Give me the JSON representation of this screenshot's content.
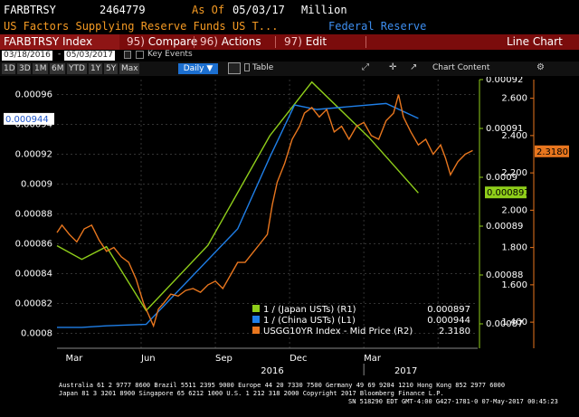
{
  "header": {
    "ticker": "FARBTRSY",
    "value": "2464779",
    "as_of_label": "As Of",
    "as_of_date": "05/03/17",
    "unit": "Million",
    "description": "US Factors Supplying Reserve Funds US T...",
    "source": "Federal Reserve"
  },
  "toolbar": {
    "index_label": "FARBTRSY Index",
    "compare_num": "95)",
    "compare_label": "Compare",
    "actions_num": "96)",
    "actions_label": "Actions",
    "edit_num": "97)",
    "edit_label": "Edit",
    "chart_type": "Line Chart"
  },
  "range": {
    "start": "03/18/2016",
    "end": "05/03/2017",
    "key_events": "Key Events"
  },
  "controls": {
    "periods": [
      "1D",
      "3D",
      "1M",
      "6M",
      "YTD",
      "1Y",
      "5Y",
      "Max"
    ],
    "frequency": "Daily",
    "table_label": "Table",
    "chart_content_label": "Chart Content"
  },
  "colors": {
    "japan": "#8fce1a",
    "china": "#1f7fe8",
    "usgg": "#e8761e",
    "header_orange": "#f59a23",
    "header_blue": "#3d8ef0"
  },
  "chart_data": {
    "type": "line",
    "x_ticks": [
      "Mar",
      "Jun",
      "Sep",
      "Dec",
      "Mar"
    ],
    "x_years": [
      "2016",
      "2017"
    ],
    "axes": {
      "left": {
        "min": 0.00079,
        "max": 0.00097,
        "ticks": [
          "0.0008",
          "0.00082",
          "0.00084",
          "0.00086",
          "0.00088",
          "0.0009",
          "0.00092",
          "0.00094",
          "0.00096"
        ],
        "tag": "0.000944"
      },
      "right1": {
        "min": 0.000865,
        "max": 0.00092,
        "ticks": [
          "0.00087",
          "0.00088",
          "0.00089",
          "0.0009",
          "0.00091",
          "0.00092"
        ],
        "tag": "0.000897"
      },
      "right2": {
        "min": 1.26,
        "max": 2.7,
        "ticks": [
          "1.400",
          "1.600",
          "1.800",
          "2.000",
          "2.200",
          "2.400",
          "2.600"
        ],
        "tag": "2.3180"
      }
    },
    "series": [
      {
        "name": "1 / (Japan USTs) (R1)",
        "last": "0.000897",
        "axis": "right1",
        "points": [
          [
            0,
            0.000886
          ],
          [
            1,
            0.0008832
          ],
          [
            2,
            0.0008858
          ],
          [
            3.6,
            0.0008727
          ],
          [
            6.1,
            0.0008861
          ],
          [
            8.6,
            0.0009085
          ],
          [
            10.3,
            0.0009195
          ],
          [
            12.6,
            0.0009082
          ],
          [
            14.6,
            0.0008968
          ]
        ]
      },
      {
        "name": "1 / (China USTs) (L1)",
        "last": "0.000944",
        "axis": "left",
        "points": [
          [
            0,
            0.000804
          ],
          [
            1,
            0.000804
          ],
          [
            2,
            0.000805
          ],
          [
            3.6,
            0.000806
          ],
          [
            7.3,
            0.00087
          ],
          [
            8.6,
            0.000918
          ],
          [
            9.6,
            0.000953
          ],
          [
            10.5,
            0.00095
          ],
          [
            13.3,
            0.000954
          ],
          [
            14.6,
            0.000944
          ]
        ]
      },
      {
        "name": "USGG10YR Index - Mid Price (R2)",
        "last": "2.3180",
        "axis": "right2",
        "points": [
          [
            0,
            1.88
          ],
          [
            0.2,
            1.92
          ],
          [
            0.5,
            1.87
          ],
          [
            0.8,
            1.83
          ],
          [
            1.1,
            1.9
          ],
          [
            1.4,
            1.92
          ],
          [
            1.7,
            1.84
          ],
          [
            2.0,
            1.78
          ],
          [
            2.3,
            1.8
          ],
          [
            2.6,
            1.75
          ],
          [
            2.9,
            1.72
          ],
          [
            3.2,
            1.63
          ],
          [
            3.5,
            1.5
          ],
          [
            3.7,
            1.44
          ],
          [
            3.9,
            1.38
          ],
          [
            4.1,
            1.47
          ],
          [
            4.3,
            1.5
          ],
          [
            4.6,
            1.55
          ],
          [
            4.9,
            1.54
          ],
          [
            5.2,
            1.57
          ],
          [
            5.5,
            1.58
          ],
          [
            5.8,
            1.56
          ],
          [
            6.1,
            1.6
          ],
          [
            6.4,
            1.62
          ],
          [
            6.7,
            1.58
          ],
          [
            7.0,
            1.65
          ],
          [
            7.3,
            1.72
          ],
          [
            7.6,
            1.72
          ],
          [
            7.9,
            1.77
          ],
          [
            8.2,
            1.82
          ],
          [
            8.5,
            1.87
          ],
          [
            8.7,
            2.03
          ],
          [
            8.9,
            2.15
          ],
          [
            9.2,
            2.25
          ],
          [
            9.5,
            2.38
          ],
          [
            9.8,
            2.45
          ],
          [
            10.0,
            2.52
          ],
          [
            10.3,
            2.55
          ],
          [
            10.6,
            2.5
          ],
          [
            10.9,
            2.54
          ],
          [
            11.2,
            2.42
          ],
          [
            11.5,
            2.45
          ],
          [
            11.8,
            2.38
          ],
          [
            12.1,
            2.45
          ],
          [
            12.4,
            2.47
          ],
          [
            12.7,
            2.4
          ],
          [
            13.0,
            2.38
          ],
          [
            13.3,
            2.48
          ],
          [
            13.6,
            2.52
          ],
          [
            13.8,
            2.62
          ],
          [
            14.0,
            2.5
          ],
          [
            14.3,
            2.42
          ],
          [
            14.6,
            2.35
          ],
          [
            14.9,
            2.38
          ],
          [
            15.2,
            2.3
          ],
          [
            15.5,
            2.35
          ],
          [
            15.7,
            2.28
          ],
          [
            15.9,
            2.19
          ],
          [
            16.2,
            2.26
          ],
          [
            16.5,
            2.3
          ],
          [
            16.8,
            2.32
          ]
        ]
      }
    ]
  },
  "footer": {
    "line1": "Australia 61 2 9777 8600 Brazil 5511 2395 9000 Europe 44 20 7330 7500 Germany 49 69 9204 1210 Hong Kong 852 2977 6000",
    "line2": "Japan 81 3 3201 8900        Singapore 65 6212 1000       U.S. 1 212 318 2000             Copyright 2017 Bloomberg Finance L.P.",
    "line3": "SN 518290 EDT  GMT-4:00 G427-1781-0 07-May-2017 00:45:23"
  }
}
